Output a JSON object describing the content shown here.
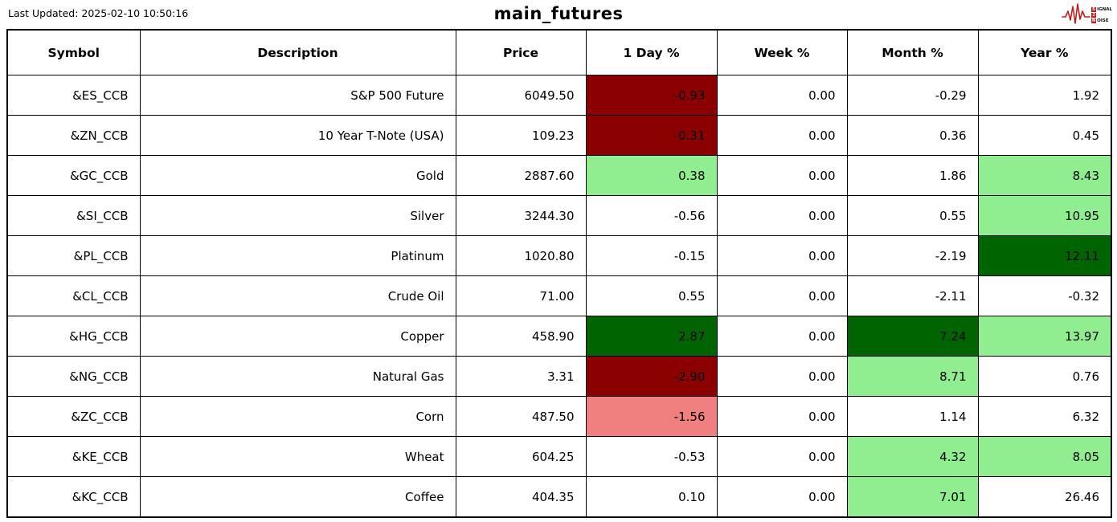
{
  "header": {
    "last_updated": "Last Updated: 2025-02-10 10:50:16",
    "title": "main_futures",
    "logo": {
      "line1_initial": "S",
      "line1_rest": "IGNAL",
      "line2_initial": "2",
      "line2_rest": "",
      "line3_initial": "N",
      "line3_rest": "OISE"
    }
  },
  "colors": {
    "dark-red": "#8b0000",
    "light-red": "#f08080",
    "light-green": "#90ee90",
    "dark-green": "#006400",
    "logo-red": "#c21d1d",
    "border": "#000000"
  },
  "table": {
    "columns": [
      "Symbol",
      "Description",
      "Price",
      "1 Day %",
      "Week %",
      "Month %",
      "Year %"
    ],
    "rows": [
      {
        "symbol": "&ES_CCB",
        "description": "S&P 500 Future",
        "price": "6049.50",
        "day": "-0.93",
        "week": "0.00",
        "month": "-0.29",
        "year": "1.92",
        "bg": {
          "day": "dark-red"
        }
      },
      {
        "symbol": "&ZN_CCB",
        "description": "10 Year T-Note (USA)",
        "price": "109.23",
        "day": "-0.31",
        "week": "0.00",
        "month": "0.36",
        "year": "0.45",
        "bg": {
          "day": "dark-red"
        }
      },
      {
        "symbol": "&GC_CCB",
        "description": "Gold",
        "price": "2887.60",
        "day": "0.38",
        "week": "0.00",
        "month": "1.86",
        "year": "8.43",
        "bg": {
          "day": "light-green",
          "year": "light-green"
        }
      },
      {
        "symbol": "&SI_CCB",
        "description": "Silver",
        "price": "3244.30",
        "day": "-0.56",
        "week": "0.00",
        "month": "0.55",
        "year": "10.95",
        "bg": {
          "year": "light-green"
        }
      },
      {
        "symbol": "&PL_CCB",
        "description": "Platinum",
        "price": "1020.80",
        "day": "-0.15",
        "week": "0.00",
        "month": "-2.19",
        "year": "12.11",
        "bg": {
          "year": "dark-green"
        }
      },
      {
        "symbol": "&CL_CCB",
        "description": "Crude Oil",
        "price": "71.00",
        "day": "0.55",
        "week": "0.00",
        "month": "-2.11",
        "year": "-0.32",
        "bg": {}
      },
      {
        "symbol": "&HG_CCB",
        "description": "Copper",
        "price": "458.90",
        "day": "2.87",
        "week": "0.00",
        "month": "7.24",
        "year": "13.97",
        "bg": {
          "day": "dark-green",
          "month": "dark-green",
          "year": "light-green"
        }
      },
      {
        "symbol": "&NG_CCB",
        "description": "Natural Gas",
        "price": "3.31",
        "day": "-2.90",
        "week": "0.00",
        "month": "8.71",
        "year": "0.76",
        "bg": {
          "day": "dark-red",
          "month": "light-green"
        }
      },
      {
        "symbol": "&ZC_CCB",
        "description": "Corn",
        "price": "487.50",
        "day": "-1.56",
        "week": "0.00",
        "month": "1.14",
        "year": "6.32",
        "bg": {
          "day": "light-red"
        }
      },
      {
        "symbol": "&KE_CCB",
        "description": "Wheat",
        "price": "604.25",
        "day": "-0.53",
        "week": "0.00",
        "month": "4.32",
        "year": "8.05",
        "bg": {
          "month": "light-green",
          "year": "light-green"
        }
      },
      {
        "symbol": "&KC_CCB",
        "description": "Coffee",
        "price": "404.35",
        "day": "0.10",
        "week": "0.00",
        "month": "7.01",
        "year": "26.46",
        "bg": {
          "month": "light-green"
        }
      }
    ]
  },
  "chart_data": {
    "type": "table",
    "title": "main_futures",
    "columns": [
      "Symbol",
      "Description",
      "Price",
      "1 Day %",
      "Week %",
      "Month %",
      "Year %"
    ],
    "rows": [
      [
        "&ES_CCB",
        "S&P 500 Future",
        6049.5,
        -0.93,
        0.0,
        -0.29,
        1.92
      ],
      [
        "&ZN_CCB",
        "10 Year T-Note (USA)",
        109.23,
        -0.31,
        0.0,
        0.36,
        0.45
      ],
      [
        "&GC_CCB",
        "Gold",
        2887.6,
        0.38,
        0.0,
        1.86,
        8.43
      ],
      [
        "&SI_CCB",
        "Silver",
        3244.3,
        -0.56,
        0.0,
        0.55,
        10.95
      ],
      [
        "&PL_CCB",
        "Platinum",
        1020.8,
        -0.15,
        0.0,
        -2.19,
        12.11
      ],
      [
        "&CL_CCB",
        "Crude Oil",
        71.0,
        0.55,
        0.0,
        -2.11,
        -0.32
      ],
      [
        "&HG_CCB",
        "Copper",
        458.9,
        2.87,
        0.0,
        7.24,
        13.97
      ],
      [
        "&NG_CCB",
        "Natural Gas",
        3.31,
        -2.9,
        0.0,
        8.71,
        0.76
      ],
      [
        "&ZC_CCB",
        "Corn",
        487.5,
        -1.56,
        0.0,
        1.14,
        6.32
      ],
      [
        "&KE_CCB",
        "Wheat",
        604.25,
        -0.53,
        0.0,
        4.32,
        8.05
      ],
      [
        "&KC_CCB",
        "Coffee",
        404.35,
        0.1,
        0.0,
        7.01,
        26.46
      ]
    ]
  }
}
